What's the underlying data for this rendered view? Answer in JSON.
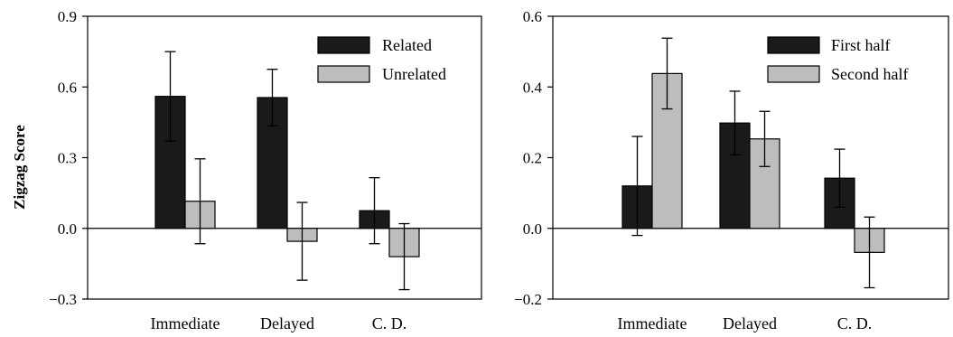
{
  "chart_data": [
    {
      "type": "bar",
      "ylabel": "Zigzag Score",
      "xlabel": "",
      "ylim": [
        -0.3,
        0.9
      ],
      "yticks": [
        -0.3,
        0.0,
        0.3,
        0.6,
        0.9
      ],
      "ytick_labels": [
        "−0.3",
        "0.0",
        "0.3",
        "0.6",
        "0.9"
      ],
      "categories": [
        "Immediate",
        "Delayed",
        "C. D."
      ],
      "series": [
        {
          "name": "Related",
          "color": "#1a1a1a",
          "values": [
            0.56,
            0.555,
            0.075
          ],
          "errors": [
            0.19,
            0.12,
            0.14
          ]
        },
        {
          "name": "Unrelated",
          "color": "#bdbdbd",
          "values": [
            0.115,
            -0.055,
            -0.12
          ],
          "errors": [
            0.18,
            0.165,
            0.14
          ]
        }
      ],
      "legend_position": "top-right",
      "grid": false
    },
    {
      "type": "bar",
      "ylabel": "",
      "xlabel": "",
      "ylim": [
        -0.2,
        0.6
      ],
      "yticks": [
        -0.2,
        0.0,
        0.2,
        0.4,
        0.6
      ],
      "ytick_labels": [
        "−0.2",
        "0.0",
        "0.2",
        "0.4",
        "0.6"
      ],
      "categories": [
        "Immediate",
        "Delayed",
        "C. D."
      ],
      "series": [
        {
          "name": "First half",
          "color": "#1a1a1a",
          "values": [
            0.12,
            0.298,
            0.142
          ],
          "errors": [
            0.14,
            0.09,
            0.082
          ]
        },
        {
          "name": "Second half",
          "color": "#bdbdbd",
          "values": [
            0.438,
            0.253,
            -0.068
          ],
          "errors": [
            0.1,
            0.078,
            0.1
          ]
        }
      ],
      "legend_position": "top-right",
      "grid": false
    }
  ]
}
